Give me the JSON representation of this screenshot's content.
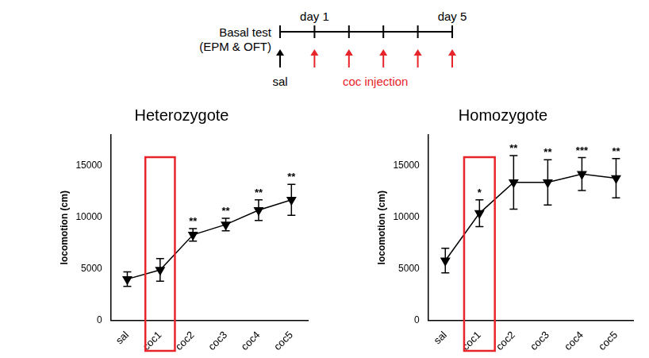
{
  "timeline": {
    "title": [
      "Basal test",
      "(EPM & OFT)"
    ],
    "days": 5,
    "day_labels": [
      {
        "day": 1,
        "label": "day 1"
      },
      {
        "day": 5,
        "label": "day 5"
      }
    ],
    "baseline_label": "sal",
    "injection_label": "coc injection",
    "injection_color": "#e8242b"
  },
  "chart_data": [
    {
      "type": "line",
      "title": "Heterozygote",
      "y_label": "locomotion (cm)",
      "categories": [
        "sal",
        "coc1",
        "coc2",
        "coc3",
        "coc4",
        "coc5"
      ],
      "values": [
        4000,
        4900,
        8300,
        9300,
        10700,
        11700
      ],
      "errors": [
        700,
        1100,
        600,
        600,
        1000,
        1500
      ],
      "annotations": [
        null,
        null,
        "**",
        "**",
        "**",
        "**"
      ],
      "color": "#000000",
      "marker": "triangle-down",
      "ylim": [
        0,
        18000
      ],
      "yticks": [
        0,
        5000,
        10000,
        15000
      ],
      "grid": false
    },
    {
      "type": "line",
      "title": "Homozygote",
      "y_label": "locomotion (cm)",
      "categories": [
        "sal",
        "coc1",
        "coc2",
        "coc3",
        "coc4",
        "coc5"
      ],
      "values": [
        5800,
        10400,
        13400,
        13400,
        14200,
        13800
      ],
      "errors": [
        1200,
        1300,
        2600,
        2200,
        1600,
        1900
      ],
      "annotations": [
        null,
        "*",
        "**",
        "**",
        "***",
        "**"
      ],
      "color": "#000000",
      "marker": "triangle-down",
      "ylim": [
        0,
        18000
      ],
      "yticks": [
        0,
        5000,
        10000,
        15000
      ],
      "grid": false
    }
  ]
}
